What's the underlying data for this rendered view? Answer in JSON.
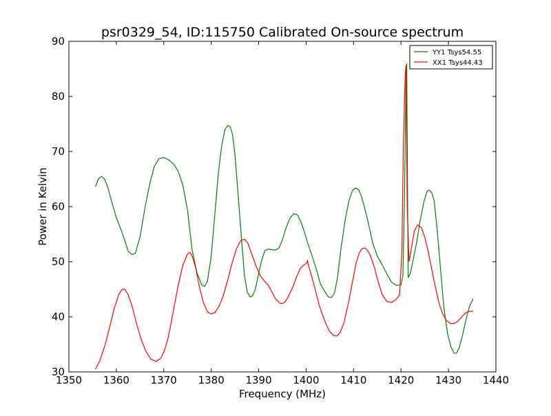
{
  "chart_data": {
    "type": "line",
    "title": "psr0329_54, ID:115750 Calibrated On-source spectrum",
    "xlabel": "Frequency (MHz)",
    "ylabel": "Power in Kelvin",
    "xlim": [
      1350,
      1440
    ],
    "ylim": [
      30,
      90
    ],
    "xticks": [
      1350,
      1360,
      1370,
      1380,
      1390,
      1400,
      1410,
      1420,
      1430,
      1440
    ],
    "yticks": [
      30,
      40,
      50,
      60,
      70,
      80,
      90
    ],
    "grid": false,
    "legend_position": "top-right",
    "series": [
      {
        "name": "YY1 Tsys54.55",
        "color": "#008000",
        "x": [
          1355.6,
          1356.2,
          1356.9,
          1357.5,
          1358.2,
          1359.0,
          1360.0,
          1361.0,
          1361.8,
          1362.5,
          1363.3,
          1364.0,
          1365.0,
          1366.0,
          1367.0,
          1368.0,
          1369.0,
          1370.0,
          1371.0,
          1372.0,
          1373.0,
          1374.0,
          1375.0,
          1376.0,
          1377.0,
          1378.0,
          1378.6,
          1379.2,
          1380.0,
          1380.8,
          1381.5,
          1382.2,
          1382.9,
          1383.5,
          1384.0,
          1384.5,
          1385.0,
          1385.6,
          1386.3,
          1387.0,
          1387.6,
          1388.2,
          1388.7,
          1389.3,
          1389.9,
          1390.6,
          1391.3,
          1392.0,
          1392.7,
          1393.5,
          1394.3,
          1395.0,
          1395.8,
          1396.6,
          1397.4,
          1398.2,
          1399.0,
          1399.6,
          1400.3,
          1401.2,
          1402.2,
          1403.0,
          1404.0,
          1404.7,
          1405.4,
          1406.0,
          1406.6,
          1407.3,
          1408.2,
          1409.0,
          1409.8,
          1410.5,
          1411.1,
          1411.6,
          1412.2,
          1413.0,
          1414.0,
          1415.0,
          1416.0,
          1417.0,
          1418.0,
          1419.0,
          1420.0,
          1420.4,
          1420.7,
          1420.9,
          1421.05,
          1421.2,
          1421.5,
          1422.0,
          1422.6,
          1423.3,
          1424.0,
          1424.8,
          1425.5,
          1426.0,
          1426.5,
          1427.0,
          1427.6,
          1428.2,
          1429.0,
          1429.8,
          1430.5,
          1431.2,
          1431.7,
          1432.3,
          1433.0,
          1433.7,
          1434.4,
          1435.2
        ],
        "y": [
          63.6,
          65.0,
          65.5,
          65.0,
          63.5,
          61.0,
          58.0,
          55.8,
          53.8,
          51.9,
          51.3,
          51.5,
          54.5,
          59.6,
          64.0,
          67.3,
          68.7,
          68.9,
          68.5,
          67.8,
          66.5,
          64.0,
          59.4,
          52.0,
          48.0,
          45.8,
          45.5,
          46.5,
          51.0,
          59.0,
          66.0,
          71.0,
          74.0,
          74.7,
          74.5,
          73.0,
          69.5,
          63.0,
          55.0,
          47.5,
          44.5,
          43.6,
          43.8,
          45.0,
          47.5,
          50.2,
          52.0,
          52.3,
          52.2,
          52.1,
          52.5,
          54.0,
          56.2,
          57.9,
          58.7,
          58.5,
          57.0,
          55.5,
          53.5,
          51.2,
          48.5,
          46.0,
          44.5,
          43.6,
          43.5,
          44.4,
          47.0,
          52.0,
          57.4,
          61.0,
          63.0,
          63.4,
          63.0,
          62.0,
          60.2,
          57.5,
          53.5,
          51.0,
          49.5,
          47.8,
          46.3,
          45.7,
          45.8,
          47.5,
          60.0,
          72.0,
          84.0,
          86.0,
          47.1,
          48.0,
          50.5,
          53.5,
          57.3,
          60.8,
          62.8,
          63.0,
          62.5,
          61.0,
          56.0,
          50.0,
          42.0,
          37.0,
          34.6,
          33.4,
          33.4,
          34.5,
          36.8,
          39.5,
          41.8,
          43.3
        ]
      },
      {
        "name": "XX1 Tsys44.43",
        "color": "#ff0000",
        "x": [
          1355.6,
          1356.5,
          1357.5,
          1358.5,
          1359.5,
          1360.5,
          1361.2,
          1361.8,
          1362.5,
          1363.3,
          1364.2,
          1365.2,
          1366.2,
          1367.3,
          1368.4,
          1369.4,
          1370.2,
          1371.0,
          1372.0,
          1373.0,
          1374.0,
          1375.0,
          1375.5,
          1376.0,
          1376.7,
          1377.5,
          1378.3,
          1379.2,
          1380.0,
          1380.8,
          1381.7,
          1382.6,
          1383.5,
          1384.4,
          1385.3,
          1386.2,
          1387.0,
          1387.7,
          1388.5,
          1389.5,
          1390.4,
          1391.3,
          1392.0,
          1392.8,
          1393.6,
          1394.4,
          1395.0,
          1395.6,
          1396.3,
          1397.2,
          1398.0,
          1398.8,
          1399.5,
          1400.1,
          1400.3,
          1400.6,
          1401.2,
          1402.0,
          1402.8,
          1403.6,
          1404.3,
          1405.0,
          1405.8,
          1406.5,
          1407.2,
          1408.0,
          1409.0,
          1409.8,
          1410.5,
          1411.2,
          1411.8,
          1412.4,
          1413.0,
          1413.6,
          1414.4,
          1415.2,
          1416.0,
          1417.0,
          1418.0,
          1419.0,
          1419.7,
          1420.2,
          1420.35,
          1420.5,
          1420.7,
          1420.9,
          1421.05,
          1421.3,
          1421.7,
          1422.2,
          1422.8,
          1423.5,
          1424.3,
          1425.0,
          1425.7,
          1426.5,
          1427.3,
          1428.0,
          1428.8,
          1429.6,
          1430.4,
          1431.2,
          1432.0,
          1432.8,
          1433.6,
          1434.4,
          1435.2
        ],
        "y": [
          30.5,
          32.0,
          34.5,
          37.8,
          41.3,
          44.0,
          45.0,
          45.0,
          44.0,
          42.0,
          39.0,
          36.0,
          33.8,
          32.3,
          31.9,
          32.5,
          34.0,
          36.5,
          41.0,
          45.5,
          49.3,
          51.4,
          51.7,
          51.0,
          49.0,
          45.5,
          42.7,
          40.9,
          40.5,
          40.8,
          42.0,
          44.0,
          46.8,
          49.8,
          52.3,
          53.8,
          54.1,
          53.4,
          51.5,
          49.1,
          47.4,
          46.4,
          45.8,
          44.5,
          43.2,
          42.5,
          42.4,
          42.7,
          43.8,
          45.4,
          47.3,
          48.8,
          49.4,
          49.7,
          50.2,
          49.0,
          47.3,
          44.7,
          42.0,
          40.0,
          38.5,
          37.3,
          36.6,
          36.5,
          37.2,
          39.0,
          42.8,
          46.5,
          49.6,
          51.6,
          52.4,
          52.5,
          52.0,
          51.0,
          49.0,
          46.3,
          44.1,
          42.8,
          42.6,
          43.2,
          44.0,
          52.0,
          62.0,
          71.0,
          78.0,
          84.0,
          85.7,
          60.0,
          50.0,
          52.5,
          55.5,
          56.7,
          56.2,
          54.5,
          52.0,
          48.5,
          45.2,
          42.5,
          40.5,
          39.3,
          38.8,
          38.8,
          39.2,
          40.0,
          40.7,
          41.0,
          41.0
        ]
      }
    ]
  }
}
